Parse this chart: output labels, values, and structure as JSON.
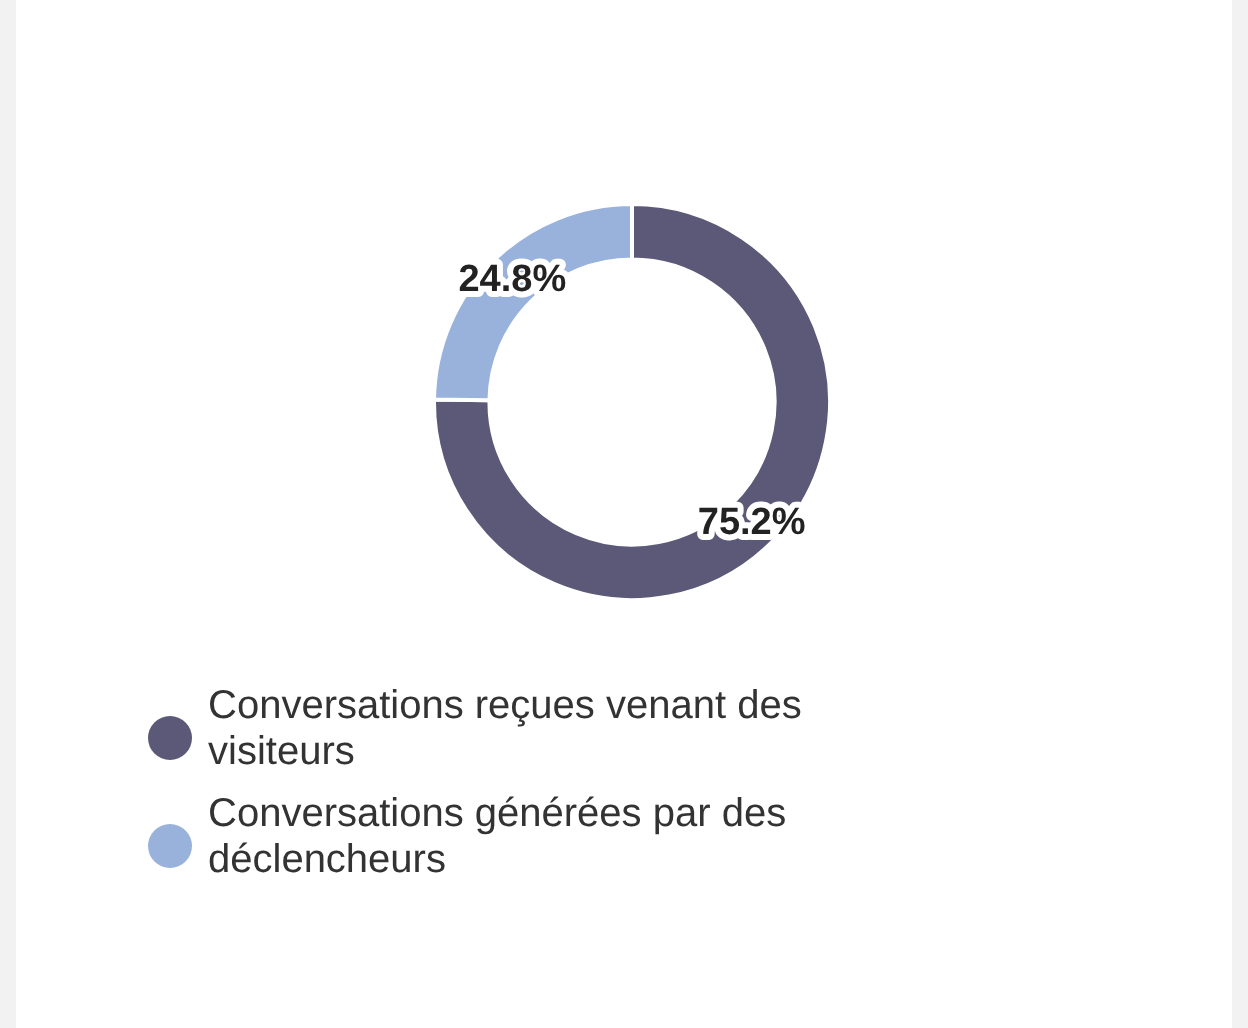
{
  "chart_data": {
    "type": "donut",
    "categories": [
      "Conversations reçues venant des visiteurs",
      "Conversations générées par des déclencheurs"
    ],
    "values": [
      75.2,
      24.8
    ],
    "colors": [
      "#5b5878",
      "#98b2dc"
    ],
    "value_labels": [
      "75.2%",
      "24.8%"
    ],
    "legend": "bottom"
  }
}
